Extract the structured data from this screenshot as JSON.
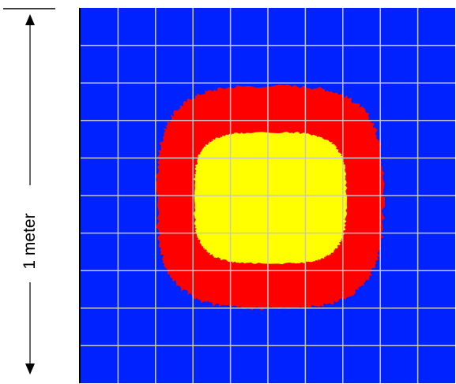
{
  "scale": {
    "label": "1 meter"
  },
  "field_map": {
    "colors": {
      "background": "#0022ff",
      "outer_zone": "#ff0000",
      "inner_zone": "#ffff00",
      "grid": "#c8c8c8",
      "frame": "#000000"
    },
    "grid": {
      "columns": 10,
      "rows": 10
    },
    "zones": [
      "outer",
      "inner"
    ]
  }
}
